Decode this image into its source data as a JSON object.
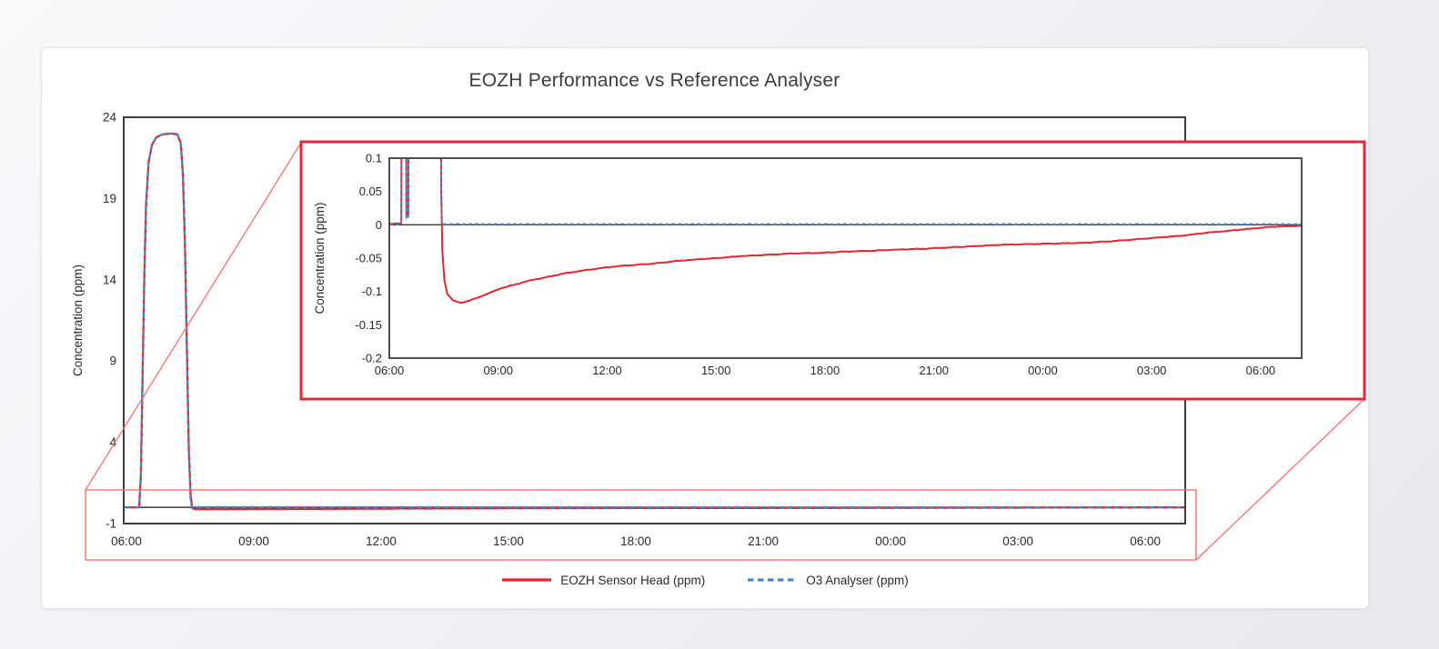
{
  "title": "EOZH Performance vs Reference Analyser",
  "colors": {
    "eozh_red": "#e8242f",
    "o3_blue": "#4687c9",
    "callout_red": "#ee2530",
    "callout_light_red": "#f4716e",
    "plot_border": "#3d3d3d",
    "zero_axis": "#3a3a3a",
    "text": "#2a2a2a",
    "card_bg": "#ffffff"
  },
  "legend": {
    "items": [
      {
        "label": "EOZH Sensor Head (ppm)",
        "style": "solid",
        "color": "#e8242f"
      },
      {
        "label": "O3 Analyser (ppm)",
        "style": "dashed",
        "color": "#4687c9"
      }
    ]
  },
  "chart_data": [
    {
      "id": "main",
      "type": "line",
      "title": "EOZH Performance vs Reference Analyser",
      "xlabel": "",
      "ylabel": "Concentration (ppm)",
      "x_tick_labels": [
        "06:00",
        "09:00",
        "12:00",
        "15:00",
        "18:00",
        "21:00",
        "00:00",
        "03:00",
        "06:00"
      ],
      "x_tick_hours": [
        0,
        3,
        6,
        9,
        12,
        15,
        18,
        21,
        24
      ],
      "xlim_hours": [
        -0.064,
        24.94
      ],
      "y_ticks": [
        24,
        19,
        14,
        9,
        4,
        -1
      ],
      "y_tick_labels": [
        "24",
        "19",
        "14",
        "9",
        "4",
        "-1"
      ],
      "ylim": [
        -1,
        24
      ],
      "grid": false,
      "legend_position": "bottom",
      "series": [
        {
          "name": "EOZH Sensor Head (ppm)",
          "color": "#e8242f",
          "style": "solid",
          "points": [
            [
              0,
              0
            ],
            [
              0.3,
              0
            ],
            [
              0.34,
              2
            ],
            [
              0.38,
              8
            ],
            [
              0.42,
              14
            ],
            [
              0.46,
              18.5
            ],
            [
              0.52,
              21.2
            ],
            [
              0.6,
              22.3
            ],
            [
              0.7,
              22.75
            ],
            [
              0.85,
              22.95
            ],
            [
              1.05,
              23.0
            ],
            [
              1.2,
              22.95
            ],
            [
              1.28,
              22.4
            ],
            [
              1.33,
              20.5
            ],
            [
              1.38,
              16
            ],
            [
              1.43,
              9
            ],
            [
              1.47,
              3.5
            ],
            [
              1.51,
              0.8
            ],
            [
              1.55,
              -0.05
            ],
            [
              1.62,
              -0.11
            ],
            [
              1.8,
              -0.115
            ],
            [
              3,
              -0.105
            ],
            [
              6,
              -0.08
            ],
            [
              9,
              -0.055
            ],
            [
              12,
              -0.045
            ],
            [
              15,
              -0.037
            ],
            [
              18,
              -0.03
            ],
            [
              21,
              -0.02
            ],
            [
              23,
              -0.01
            ],
            [
              24.94,
              -0.003
            ]
          ]
        },
        {
          "name": "O3 Analyser (ppm)",
          "color": "#4687c9",
          "style": "dashed",
          "points": [
            [
              0,
              0.002
            ],
            [
              0.3,
              0.002
            ],
            [
              0.34,
              2
            ],
            [
              0.38,
              8
            ],
            [
              0.42,
              14
            ],
            [
              0.46,
              18.5
            ],
            [
              0.52,
              21.2
            ],
            [
              0.6,
              22.3
            ],
            [
              0.7,
              22.75
            ],
            [
              0.85,
              22.95
            ],
            [
              1.05,
              23.0
            ],
            [
              1.2,
              22.95
            ],
            [
              1.28,
              22.4
            ],
            [
              1.33,
              20.5
            ],
            [
              1.38,
              16
            ],
            [
              1.43,
              9
            ],
            [
              1.47,
              3.5
            ],
            [
              1.51,
              0.5
            ],
            [
              1.54,
              0.01
            ],
            [
              24.94,
              0.002
            ]
          ]
        }
      ]
    },
    {
      "id": "inset",
      "type": "line",
      "title": "",
      "xlabel": "",
      "ylabel": "Concentration (ppm)",
      "x_tick_labels": [
        "06:00",
        "09:00",
        "12:00",
        "15:00",
        "18:00",
        "21:00",
        "00:00",
        "03:00",
        "06:00"
      ],
      "x_tick_hours": [
        0,
        3,
        6,
        9,
        12,
        15,
        18,
        21,
        24
      ],
      "xlim_hours": [
        0,
        25.13
      ],
      "y_ticks": [
        0.1,
        0.05,
        0,
        -0.05,
        -0.1,
        -0.15,
        -0.2
      ],
      "y_tick_labels": [
        "0.1",
        "0.05",
        "0",
        "-0.05",
        "-0.1",
        "-0.15",
        "-0.2"
      ],
      "ylim": [
        -0.2,
        0.1
      ],
      "grid": false,
      "legend_position": "none",
      "series": [
        {
          "name": "EOZH Sensor Head (ppm)",
          "color": "#e8242f",
          "style": "solid",
          "points": [
            [
              0,
              0.002
            ],
            [
              0.33,
              0.002
            ],
            [
              0.35,
              0.55
            ],
            [
              0.45,
              0.55
            ],
            [
              0.47,
              0.012
            ],
            [
              0.52,
              0.012
            ],
            [
              0.54,
              0.55
            ],
            [
              1.4,
              0.55
            ],
            [
              1.43,
              0.05
            ],
            [
              1.46,
              -0.04
            ],
            [
              1.52,
              -0.085
            ],
            [
              1.6,
              -0.104
            ],
            [
              1.75,
              -0.113
            ],
            [
              1.95,
              -0.117
            ],
            [
              2.2,
              -0.114
            ],
            [
              2.5,
              -0.108
            ],
            [
              2.8,
              -0.101
            ],
            [
              3.1,
              -0.095
            ],
            [
              3.5,
              -0.089
            ],
            [
              3.9,
              -0.083
            ],
            [
              4.3,
              -0.079
            ],
            [
              4.8,
              -0.073
            ],
            [
              5.3,
              -0.069
            ],
            [
              5.8,
              -0.065
            ],
            [
              6.3,
              -0.062
            ],
            [
              6.8,
              -0.06
            ],
            [
              7.3,
              -0.058
            ],
            [
              7.8,
              -0.055
            ],
            [
              8.4,
              -0.052
            ],
            [
              9.0,
              -0.05
            ],
            [
              9.7,
              -0.047
            ],
            [
              10.4,
              -0.045
            ],
            [
              11.1,
              -0.043
            ],
            [
              11.9,
              -0.042
            ],
            [
              12.6,
              -0.04
            ],
            [
              13.3,
              -0.039
            ],
            [
              14.0,
              -0.037
            ],
            [
              14.7,
              -0.036
            ],
            [
              15.4,
              -0.034
            ],
            [
              16.1,
              -0.032
            ],
            [
              16.9,
              -0.03
            ],
            [
              17.6,
              -0.029
            ],
            [
              18.4,
              -0.028
            ],
            [
              19.1,
              -0.027
            ],
            [
              19.8,
              -0.025
            ],
            [
              20.5,
              -0.022
            ],
            [
              21.2,
              -0.019
            ],
            [
              21.9,
              -0.016
            ],
            [
              22.5,
              -0.012
            ],
            [
              23.1,
              -0.009
            ],
            [
              23.7,
              -0.006
            ],
            [
              24.3,
              -0.003
            ],
            [
              24.9,
              -0.002
            ],
            [
              25.13,
              -0.001
            ]
          ]
        },
        {
          "name": "O3 Analyser (ppm)",
          "color": "#4687c9",
          "style": "dashed",
          "points": [
            [
              0,
              0.001
            ],
            [
              0.33,
              0.001
            ],
            [
              0.35,
              0.55
            ],
            [
              0.45,
              0.55
            ],
            [
              0.47,
              0.01
            ],
            [
              0.52,
              0.01
            ],
            [
              0.54,
              0.55
            ],
            [
              1.4,
              0.55
            ],
            [
              1.43,
              0.04
            ],
            [
              1.45,
              0.001
            ],
            [
              25.13,
              0.001
            ]
          ]
        }
      ]
    }
  ]
}
